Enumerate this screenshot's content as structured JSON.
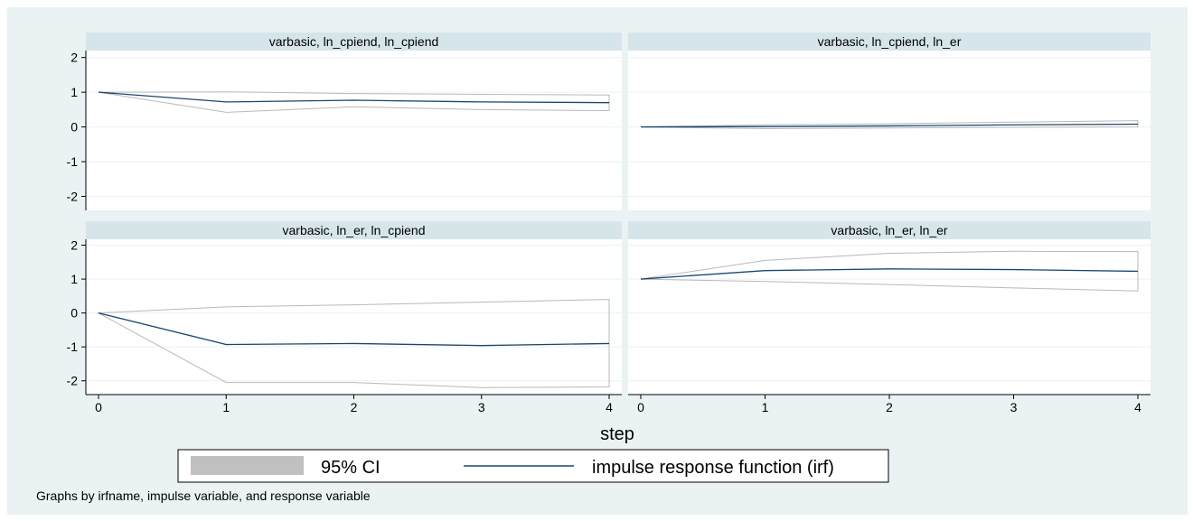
{
  "colors": {
    "background": "#eaf2f3",
    "panel_bg": "#ffffff",
    "strip_bg": "#d6e5ea",
    "irf_line": "#1a476f",
    "ci_line": "#b9b9b9",
    "ci_fill": "#c0c0c0",
    "grid": "#eaf2f3",
    "axis": "#000000"
  },
  "chart_data": {
    "type": "line",
    "layout": "2x2 panels",
    "xlabel": "step",
    "x": [
      0,
      1,
      2,
      3,
      4
    ],
    "xlim": [
      0,
      4
    ],
    "ylim": [
      -2.3,
      2.2
    ],
    "yticks": [
      -2,
      -1,
      0,
      1,
      2
    ],
    "xticks": [
      0,
      1,
      2,
      3,
      4
    ],
    "grid": true,
    "legend": {
      "position": "bottom",
      "items": [
        {
          "label": "95% CI",
          "kind": "area"
        },
        {
          "label": "impulse response function (irf)",
          "kind": "line"
        }
      ]
    },
    "note": "Graphs by irfname, impulse variable, and response variable",
    "panels": [
      {
        "title": "varbasic, ln_cpiend, ln_cpiend",
        "irf": [
          1,
          0.72,
          0.77,
          0.72,
          0.7
        ],
        "ci_lower": [
          1,
          0.42,
          0.58,
          0.5,
          0.47
        ],
        "ci_upper": [
          1,
          1.01,
          0.96,
          0.94,
          0.92
        ]
      },
      {
        "title": "varbasic, ln_cpiend, ln_er",
        "irf": [
          0,
          0.01,
          0.03,
          0.06,
          0.08
        ],
        "ci_lower": [
          0,
          -0.05,
          -0.03,
          -0.01,
          0.0
        ],
        "ci_upper": [
          0,
          0.06,
          0.09,
          0.14,
          0.18
        ]
      },
      {
        "title": "varbasic, ln_er, ln_cpiend",
        "irf": [
          0,
          -0.93,
          -0.9,
          -0.96,
          -0.9
        ],
        "ci_lower": [
          0,
          -2.05,
          -2.05,
          -2.2,
          -2.18
        ],
        "ci_upper": [
          0,
          0.18,
          0.24,
          0.32,
          0.4
        ]
      },
      {
        "title": "varbasic, ln_er, ln_er",
        "irf": [
          1,
          1.25,
          1.3,
          1.28,
          1.23
        ],
        "ci_lower": [
          1,
          0.93,
          0.84,
          0.74,
          0.65
        ],
        "ci_upper": [
          1,
          1.55,
          1.76,
          1.82,
          1.81
        ]
      }
    ]
  }
}
